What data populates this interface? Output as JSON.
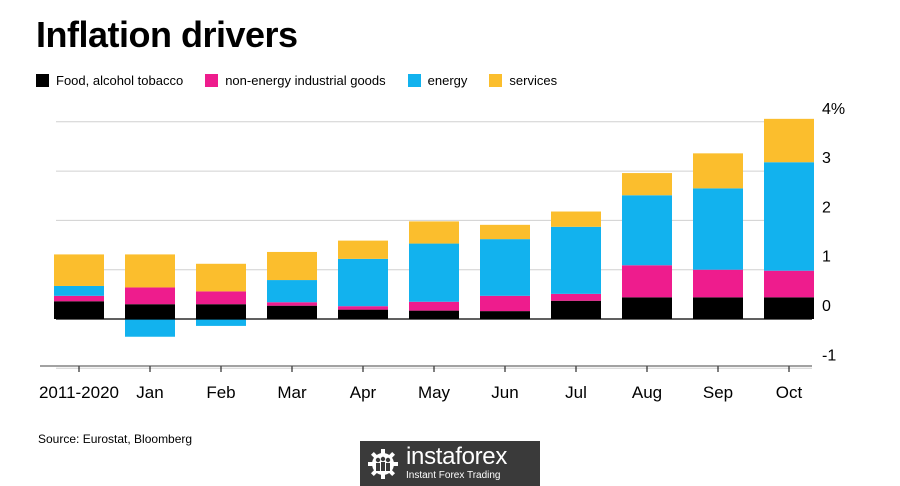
{
  "colors": {
    "food": "#000000",
    "non_energy": "#ee1c8d",
    "energy": "#12b2ee",
    "services": "#fbbe2d",
    "grid": "#d0d0d0",
    "axis": "#000000",
    "brand_bg": "#3a3a3a"
  },
  "source": "Source: Eurostat, Bloomberg",
  "brand": {
    "name": "instaforex",
    "tagline": "Instant Forex Trading",
    "icon": "gear-people-logo-icon"
  },
  "chart_data": {
    "type": "bar",
    "stacked": true,
    "title": "Inflation drivers",
    "xlabel": "",
    "ylabel": "",
    "categories": [
      "2011-2020",
      "Jan",
      "Feb",
      "Mar",
      "Apr",
      "May",
      "Jun",
      "Jul",
      "Aug",
      "Sep",
      "Oct"
    ],
    "y_ticks": [
      "4%",
      "3",
      "2",
      "1",
      "0",
      "-1"
    ],
    "y_tick_values": [
      4,
      3,
      2,
      1,
      0,
      -1
    ],
    "ylim": [
      -1,
      4
    ],
    "grid": true,
    "axis_side": "right",
    "legend_position": "top-left",
    "series": [
      {
        "name": "Food, alcohol tobacco",
        "color": "#000000",
        "values": [
          0.36,
          0.3,
          0.3,
          0.27,
          0.19,
          0.17,
          0.16,
          0.37,
          0.44,
          0.44,
          0.44
        ]
      },
      {
        "name": "non-energy industrial goods",
        "color": "#ee1c8d",
        "values": [
          0.11,
          0.34,
          0.26,
          0.07,
          0.07,
          0.18,
          0.31,
          0.14,
          0.65,
          0.56,
          0.54
        ]
      },
      {
        "name": "energy",
        "color": "#12b2ee",
        "values": [
          0.2,
          -0.36,
          -0.14,
          0.45,
          0.96,
          1.18,
          1.15,
          1.36,
          1.42,
          1.65,
          2.2
        ]
      },
      {
        "name": "services",
        "color": "#fbbe2d",
        "values": [
          0.64,
          0.67,
          0.56,
          0.57,
          0.37,
          0.45,
          0.29,
          0.31,
          0.45,
          0.71,
          0.88
        ]
      }
    ]
  }
}
